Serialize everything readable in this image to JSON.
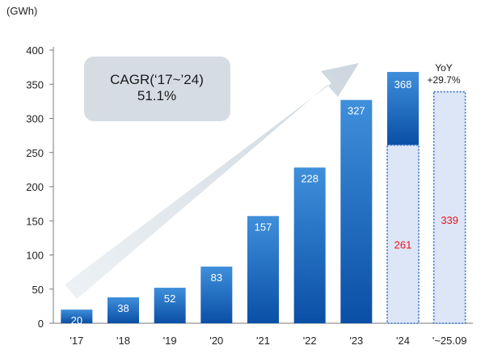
{
  "chart_data": {
    "type": "bar",
    "unit_label": "(GWh)",
    "ylim": [
      0,
      400
    ],
    "yticks": [
      0,
      50,
      100,
      150,
      200,
      250,
      300,
      350,
      400
    ],
    "categories": [
      "'17",
      "'18",
      "'19",
      "'20",
      "'21",
      "'22",
      "'23",
      "'24",
      "'~25.09"
    ],
    "bars": [
      {
        "category": "'17",
        "value": 20,
        "label": "20",
        "style": "solid"
      },
      {
        "category": "'18",
        "value": 38,
        "label": "38",
        "style": "solid"
      },
      {
        "category": "'19",
        "value": 52,
        "label": "52",
        "style": "solid"
      },
      {
        "category": "'20",
        "value": 83,
        "label": "83",
        "style": "solid"
      },
      {
        "category": "'21",
        "value": 157,
        "label": "157",
        "style": "solid"
      },
      {
        "category": "'22",
        "value": 228,
        "label": "228",
        "style": "solid"
      },
      {
        "category": "'23",
        "value": 327,
        "label": "327",
        "style": "solid"
      },
      {
        "category": "'24",
        "value": 368,
        "label": "368",
        "style": "stacked",
        "highlight_value": 261,
        "highlight_label": "261"
      },
      {
        "category": "'~25.09",
        "value": 339,
        "label": "339",
        "style": "outline"
      }
    ],
    "annotation": {
      "line1": "CAGR(‘17~’24)",
      "line2": "51.1%"
    },
    "yoy": {
      "line1": "YoY",
      "line2": "+29.7%"
    },
    "colors": {
      "bar_top": "#3f8fdb",
      "bar_bottom": "#0a4fa6",
      "highlight_fill": "#dde6f7",
      "highlight_stroke": "#2f6fc4",
      "red_text": "#e8141c",
      "axis": "#7a7a7a",
      "annotation_box": "#d5dde3",
      "arrow": "#dbe2e8"
    }
  }
}
